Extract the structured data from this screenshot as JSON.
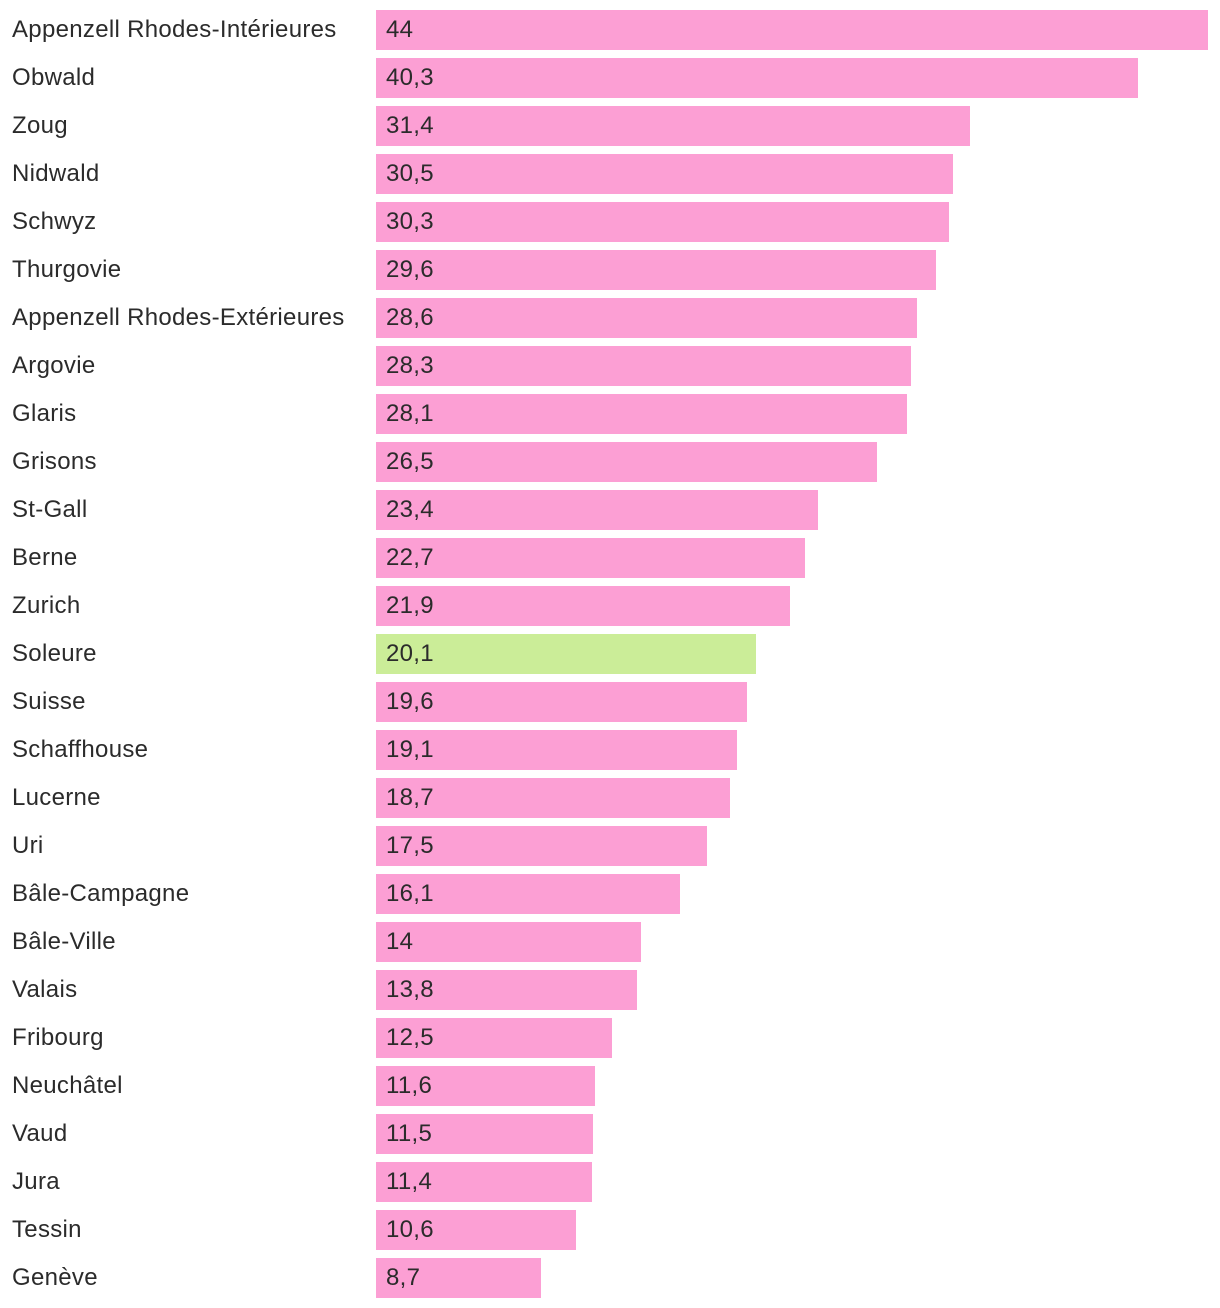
{
  "chart_data": {
    "type": "bar",
    "orientation": "horizontal",
    "title": "",
    "xlabel": "",
    "ylabel": "",
    "xlim": [
      0,
      44
    ],
    "colors": {
      "default": "#fc9fd4",
      "highlight": "#cbed98"
    },
    "highlight_category": "Soleure",
    "bars": [
      {
        "category": "Appenzell Rhodes-Intérieures",
        "value": 44,
        "label": "44"
      },
      {
        "category": "Obwald",
        "value": 40.3,
        "label": "40,3"
      },
      {
        "category": "Zoug",
        "value": 31.4,
        "label": "31,4"
      },
      {
        "category": "Nidwald",
        "value": 30.5,
        "label": "30,5"
      },
      {
        "category": "Schwyz",
        "value": 30.3,
        "label": "30,3"
      },
      {
        "category": "Thurgovie",
        "value": 29.6,
        "label": "29,6"
      },
      {
        "category": "Appenzell Rhodes-Extérieures",
        "value": 28.6,
        "label": "28,6"
      },
      {
        "category": "Argovie",
        "value": 28.3,
        "label": "28,3"
      },
      {
        "category": "Glaris",
        "value": 28.1,
        "label": "28,1"
      },
      {
        "category": "Grisons",
        "value": 26.5,
        "label": "26,5"
      },
      {
        "category": "St-Gall",
        "value": 23.4,
        "label": "23,4"
      },
      {
        "category": "Berne",
        "value": 22.7,
        "label": "22,7"
      },
      {
        "category": "Zurich",
        "value": 21.9,
        "label": "21,9"
      },
      {
        "category": "Soleure",
        "value": 20.1,
        "label": "20,1"
      },
      {
        "category": "Suisse",
        "value": 19.6,
        "label": "19,6"
      },
      {
        "category": "Schaffhouse",
        "value": 19.1,
        "label": "19,1"
      },
      {
        "category": "Lucerne",
        "value": 18.7,
        "label": "18,7"
      },
      {
        "category": "Uri",
        "value": 17.5,
        "label": "17,5"
      },
      {
        "category": "Bâle-Campagne",
        "value": 16.1,
        "label": "16,1"
      },
      {
        "category": "Bâle-Ville",
        "value": 14,
        "label": "14"
      },
      {
        "category": "Valais",
        "value": 13.8,
        "label": "13,8"
      },
      {
        "category": "Fribourg",
        "value": 12.5,
        "label": "12,5"
      },
      {
        "category": "Neuchâtel",
        "value": 11.6,
        "label": "11,6"
      },
      {
        "category": "Vaud",
        "value": 11.5,
        "label": "11,5"
      },
      {
        "category": "Jura",
        "value": 11.4,
        "label": "11,4"
      },
      {
        "category": "Tessin",
        "value": 10.6,
        "label": "10,6"
      },
      {
        "category": "Genève",
        "value": 8.7,
        "label": "8,7"
      }
    ]
  }
}
